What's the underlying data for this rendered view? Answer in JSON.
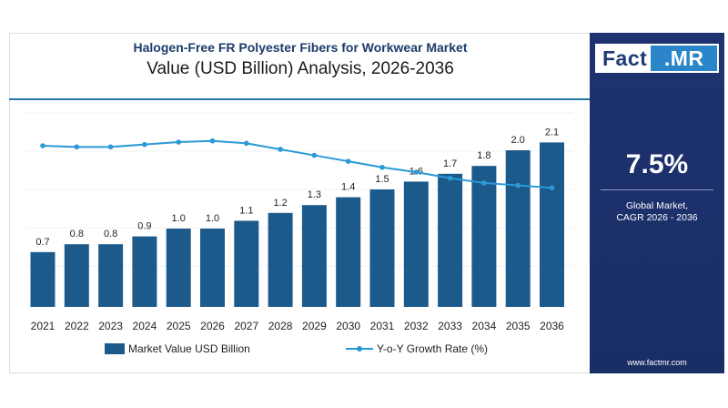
{
  "header": {
    "title": "Halogen-Free FR Polyester Fibers for Workwear Market",
    "subtitle": "Value (USD Billion) Analysis, 2026-2036"
  },
  "logo": {
    "left": "Fact",
    "right": ".MR"
  },
  "side_panel": {
    "cagr_value": "7.5%",
    "cagr_label_line1": "Global Market,",
    "cagr_label_line2": "CAGR 2026 - 2036",
    "website": "www.factmr.com"
  },
  "colors": {
    "bar": "#1d5a8c",
    "line": "#2a9ad6",
    "panel": "#1e3270",
    "accent": "#2a86c8"
  },
  "chart_data": {
    "type": "bar",
    "categories": [
      "2021",
      "2022",
      "2023",
      "2024",
      "2025",
      "2026",
      "2027",
      "2028",
      "2029",
      "2030",
      "2031",
      "2032",
      "2033",
      "2034",
      "2035",
      "2036"
    ],
    "series": [
      {
        "name": "Market Value USD Billion",
        "type": "bar",
        "values": [
          0.7,
          0.8,
          0.8,
          0.9,
          1.0,
          1.0,
          1.1,
          1.2,
          1.3,
          1.4,
          1.5,
          1.6,
          1.7,
          1.8,
          2.0,
          2.1
        ],
        "labels": [
          "0.7",
          "0.8",
          "0.8",
          "0.9",
          "1.0",
          "1.0",
          "1.1",
          "1.2",
          "1.3",
          "1.4",
          "1.5",
          "1.6",
          "1.7",
          "1.8",
          "2.0",
          "2.1"
        ]
      },
      {
        "name": "Y-o-Y Growth Rate (%)",
        "type": "line",
        "values": [
          7.7,
          7.6,
          7.6,
          7.8,
          8.0,
          8.1,
          7.9,
          7.4,
          6.9,
          6.4,
          5.9,
          5.5,
          5.0,
          4.6,
          4.4,
          4.2
        ]
      }
    ],
    "legend_position": "bottom",
    "grid": true
  }
}
